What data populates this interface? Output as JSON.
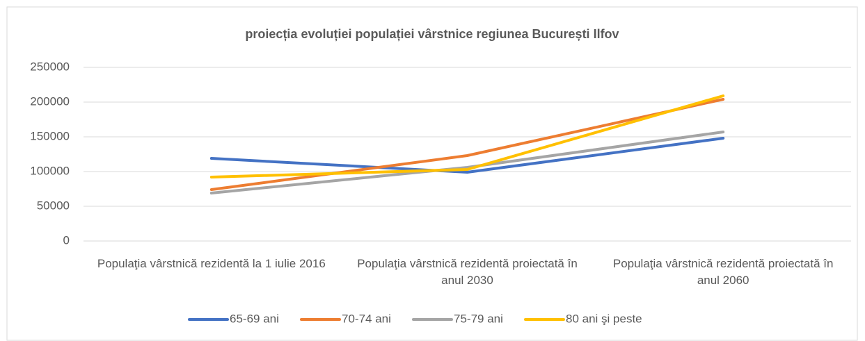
{
  "chart_data": {
    "type": "line",
    "title": "proiecția evoluției populației vârstnice regiunea București Ilfov",
    "categories": [
      "Populaţia vârstnică rezidentă la 1 iulie 2016",
      "Populaţia vârstnică rezidentă proiectată în anul 2030",
      "Populaţia vârstnică rezidentă proiectată în anul 2060"
    ],
    "series": [
      {
        "name": "65-69 ani",
        "color": "#4472c4",
        "values": [
          119000,
          99000,
          148000
        ]
      },
      {
        "name": "70-74 ani",
        "color": "#ed7d31",
        "values": [
          74000,
          123000,
          204000
        ]
      },
      {
        "name": "75-79 ani",
        "color": "#a5a5a5",
        "values": [
          69000,
          106000,
          157000
        ]
      },
      {
        "name": "80 ani şi peste",
        "color": "#ffc000",
        "values": [
          92000,
          103000,
          209000
        ]
      }
    ],
    "ylim": [
      0,
      250000
    ],
    "yticks": [
      0,
      50000,
      100000,
      150000,
      200000,
      250000
    ],
    "grid": true,
    "legend": "bottom"
  }
}
